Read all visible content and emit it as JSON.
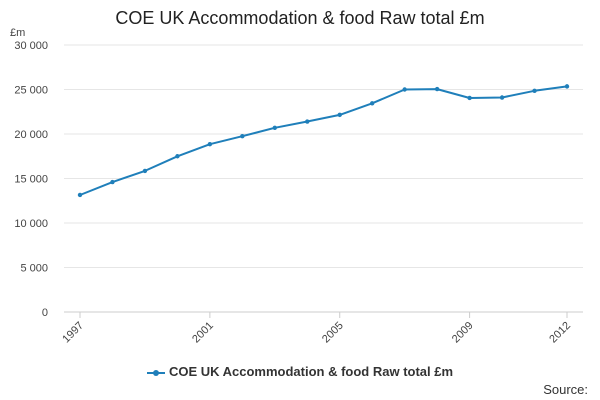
{
  "chart_data": {
    "type": "line",
    "title": "COE UK Accommodation & food Raw total £m",
    "ylabel": "£m",
    "xlabel": "",
    "ylim": [
      0,
      30000
    ],
    "yticks": [
      0,
      5000,
      10000,
      15000,
      20000,
      25000,
      30000
    ],
    "ytick_labels": [
      "0",
      "5 000",
      "10 000",
      "15 000",
      "20 000",
      "25 000",
      "30 000"
    ],
    "xlim": [
      1997,
      2012
    ],
    "xticks": [
      1997,
      2001,
      2005,
      2009,
      2012
    ],
    "xtick_labels": [
      "1997",
      "2001",
      "2005",
      "2009",
      "2012"
    ],
    "series": [
      {
        "name": "COE UK Accommodation & food Raw total £m",
        "color": "#1f7fba",
        "x": [
          1997,
          1998,
          1999,
          2000,
          2001,
          2002,
          2003,
          2004,
          2005,
          2006,
          2007,
          2008,
          2009,
          2010,
          2011,
          2012
        ],
        "values": [
          13150,
          14600,
          15850,
          17500,
          18850,
          19750,
          20700,
          21400,
          22150,
          23450,
          25000,
          25050,
          24050,
          24100,
          24850,
          25350
        ]
      }
    ],
    "legend_position": "bottom-center",
    "source_label": "Source:"
  }
}
